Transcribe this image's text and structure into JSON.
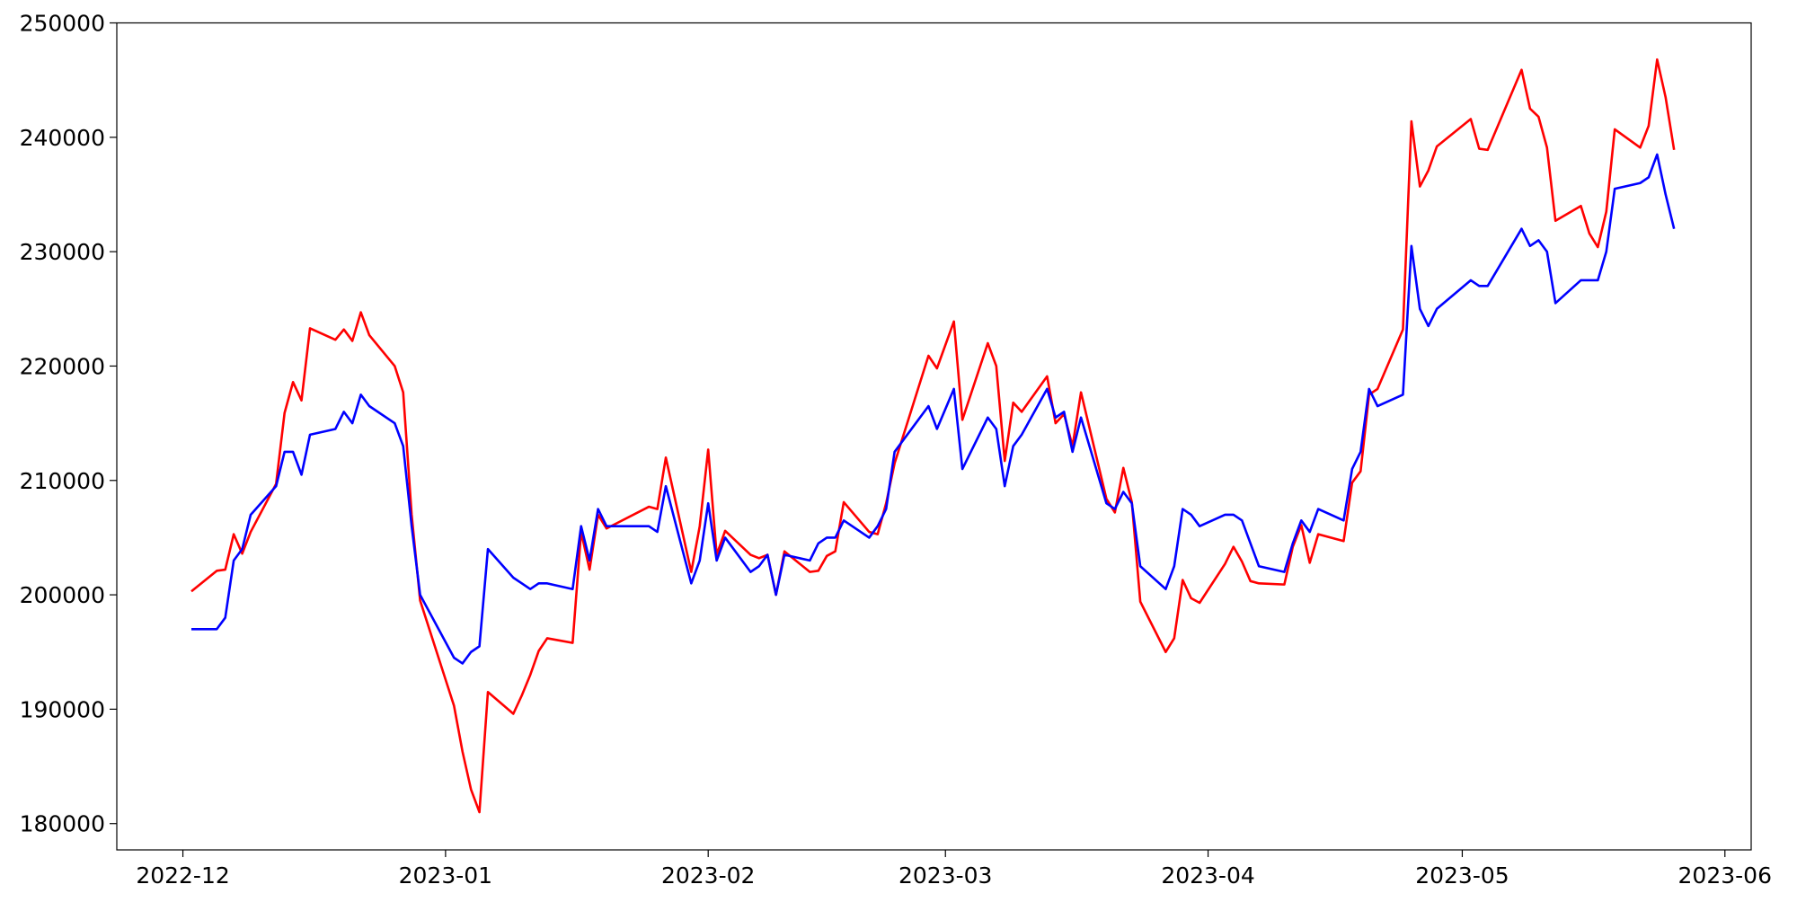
{
  "chart_data": {
    "type": "line",
    "x": [
      1,
      4,
      5,
      6,
      7,
      8,
      11,
      12,
      13,
      14,
      15,
      18,
      19,
      20,
      21,
      22,
      25,
      26,
      27,
      28,
      32,
      33,
      34,
      35,
      36,
      39,
      40,
      41,
      42,
      43,
      46,
      47,
      48,
      49,
      50,
      55,
      56,
      57,
      60,
      61,
      62,
      63,
      64,
      67,
      68,
      69,
      70,
      71,
      74,
      75,
      76,
      77,
      78,
      81,
      82,
      83,
      84,
      88,
      89,
      91,
      92,
      95,
      96,
      97,
      98,
      99,
      102,
      103,
      104,
      105,
      106,
      109,
      110,
      111,
      112,
      113,
      116,
      117,
      118,
      119,
      120,
      123,
      124,
      125,
      126,
      127,
      130,
      131,
      132,
      133,
      134,
      137,
      138,
      139,
      140,
      141,
      144,
      145,
      146,
      147,
      148,
      152,
      153,
      154,
      158,
      159,
      160,
      161,
      162,
      165,
      166,
      167,
      168,
      169,
      172,
      173,
      174,
      175,
      176
    ],
    "series": [
      {
        "color": "#ff0000",
        "values": [
          200300,
          202100,
          202200,
          205300,
          203600,
          205500,
          209700,
          215900,
          218600,
          217000,
          223300,
          222300,
          223200,
          222200,
          224700,
          222700,
          220000,
          217700,
          207000,
          199500,
          190300,
          186300,
          183000,
          181000,
          191500,
          189600,
          191200,
          193000,
          195100,
          196200,
          195800,
          205500,
          202200,
          207000,
          205800,
          207700,
          207500,
          212000,
          202000,
          206000,
          212700,
          203500,
          205600,
          203500,
          203200,
          203500,
          200000,
          203800,
          202000,
          202100,
          203400,
          203800,
          208100,
          205500,
          205300,
          208000,
          211500,
          220900,
          219800,
          223900,
          215300,
          222000,
          220000,
          211700,
          216800,
          216000,
          219100,
          215000,
          215800,
          213000,
          217700,
          208400,
          207200,
          211100,
          208100,
          199400,
          195000,
          196200,
          201300,
          199700,
          199300,
          202700,
          204200,
          202900,
          201200,
          201000,
          200900,
          204200,
          206100,
          202800,
          205300,
          204700,
          209800,
          210800,
          217500,
          218000,
          223200,
          241400,
          235700,
          237100,
          239200,
          241600,
          239000,
          238900,
          245900,
          242500,
          241800,
          239100,
          232700,
          234000,
          231600,
          230400,
          233500,
          240700,
          239100,
          241000,
          246800,
          243500,
          238900
        ]
      },
      {
        "color": "#0000ff",
        "values": [
          197000,
          197000,
          198000,
          203000,
          204000,
          207000,
          209500,
          212500,
          212500,
          210500,
          214000,
          214500,
          216000,
          215000,
          217500,
          216500,
          215000,
          213000,
          206000,
          200000,
          194500,
          194000,
          195000,
          195500,
          204000,
          201500,
          201000,
          200500,
          201000,
          201000,
          200500,
          206000,
          203000,
          207500,
          206000,
          206000,
          205500,
          209500,
          201000,
          203000,
          208000,
          203000,
          205000,
          202000,
          202500,
          203500,
          200000,
          203500,
          203000,
          204500,
          205000,
          205000,
          206500,
          205000,
          206000,
          207500,
          212500,
          216500,
          214500,
          218000,
          211000,
          215500,
          214500,
          209500,
          213000,
          214000,
          218000,
          215500,
          216000,
          212500,
          215500,
          208000,
          207500,
          209000,
          208000,
          202500,
          200500,
          202500,
          207500,
          207000,
          206000,
          207000,
          207000,
          206500,
          204500,
          202500,
          202000,
          204500,
          206500,
          205500,
          207500,
          206500,
          211000,
          212500,
          218000,
          216500,
          217500,
          230500,
          225000,
          223500,
          225000,
          227500,
          227000,
          227000,
          232000,
          230500,
          231000,
          230000,
          225500,
          227500,
          227500,
          227500,
          230000,
          235500,
          236000,
          236500,
          238500,
          235000,
          232000
        ]
      }
    ],
    "xlim": [
      -7.8,
      185.1
    ],
    "xticks": [
      {
        "value": 0,
        "label": "2022-12"
      },
      {
        "value": 31,
        "label": "2023-01"
      },
      {
        "value": 62,
        "label": "2023-02"
      },
      {
        "value": 90,
        "label": "2023-03"
      },
      {
        "value": 121,
        "label": "2023-04"
      },
      {
        "value": 151,
        "label": "2023-05"
      },
      {
        "value": 182,
        "label": "2023-06"
      }
    ],
    "ylim": [
      177700,
      250000
    ],
    "yticks": [
      180000,
      190000,
      200000,
      210000,
      220000,
      230000,
      240000,
      250000
    ],
    "grid": false
  }
}
